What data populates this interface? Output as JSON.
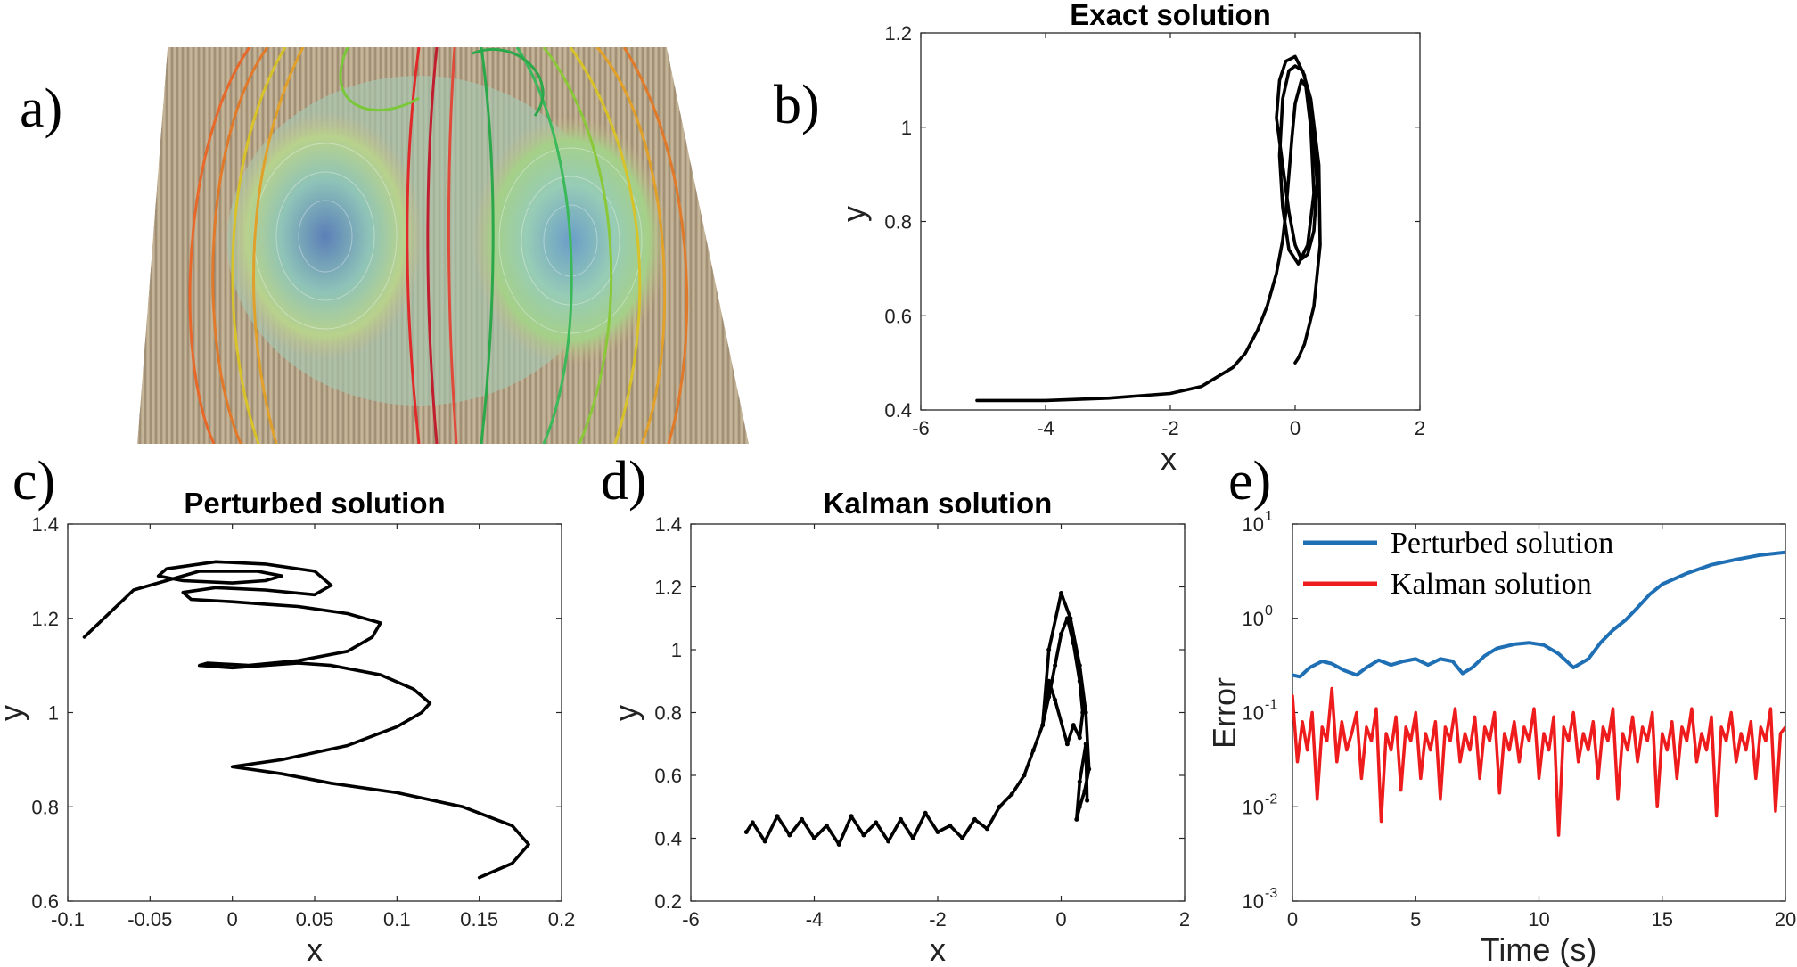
{
  "panel_labels": [
    "a)",
    "b)",
    "c)",
    "d)",
    "e)"
  ],
  "chart_data": [
    {
      "panel": "a)",
      "type": "other"
    },
    {
      "panel": "b)",
      "type": "line",
      "title": "Exact solution",
      "xlabel": "x",
      "ylabel": "y",
      "xlim": [
        -6,
        2
      ],
      "ylim": [
        0.4,
        1.2
      ],
      "xticks": [
        "-6",
        "-4",
        "-2",
        "0",
        "2"
      ],
      "yticks": [
        "0.4",
        "0.6",
        "0.8",
        "1",
        "1.2"
      ],
      "series": [
        {
          "color": "#000000",
          "x": [
            -5.1,
            -4.0,
            -3.0,
            -2.0,
            -1.5,
            -1.0,
            -0.8,
            -0.6,
            -0.45,
            -0.3,
            -0.2,
            -0.15,
            -0.1,
            -0.05,
            0.0,
            0.1,
            0.2,
            0.3,
            0.35,
            0.3,
            0.2,
            0.1,
            0.0,
            -0.1,
            -0.2,
            -0.3,
            -0.25,
            -0.15,
            0.0,
            0.15,
            0.25,
            0.3,
            0.2,
            0.05,
            -0.1,
            -0.2,
            -0.25,
            -0.2,
            -0.1,
            0.0,
            0.12,
            0.25,
            0.38,
            0.4,
            0.3,
            0.15,
            0.05,
            0.0
          ],
          "y": [
            0.42,
            0.42,
            0.425,
            0.435,
            0.45,
            0.49,
            0.52,
            0.57,
            0.62,
            0.69,
            0.76,
            0.82,
            0.9,
            0.98,
            1.05,
            1.1,
            1.08,
            0.98,
            0.88,
            0.78,
            0.73,
            0.72,
            0.75,
            0.82,
            0.92,
            1.02,
            1.1,
            1.14,
            1.15,
            1.11,
            1.0,
            0.86,
            0.75,
            0.71,
            0.74,
            0.83,
            0.94,
            1.06,
            1.12,
            1.13,
            1.12,
            1.06,
            0.92,
            0.75,
            0.62,
            0.54,
            0.51,
            0.5
          ]
        }
      ]
    },
    {
      "panel": "c)",
      "type": "line",
      "title": "Perturbed solution",
      "xlabel": "x",
      "ylabel": "y",
      "xlim": [
        -0.1,
        0.2
      ],
      "ylim": [
        0.6,
        1.4
      ],
      "xticks": [
        "-0.1",
        "-0.05",
        "0",
        "0.05",
        "0.1",
        "0.15",
        "0.2"
      ],
      "yticks": [
        "0.6",
        "0.8",
        "1",
        "1.2",
        "1.4"
      ],
      "series": [
        {
          "color": "#000000",
          "x": [
            0.15,
            0.17,
            0.18,
            0.17,
            0.14,
            0.1,
            0.06,
            0.03,
            0.01,
            0.0,
            0.03,
            0.07,
            0.1,
            0.115,
            0.12,
            0.11,
            0.09,
            0.06,
            0.04,
            0.02,
            0.0,
            -0.02,
            -0.015,
            0.01,
            0.04,
            0.07,
            0.085,
            0.09,
            0.07,
            0.04,
            0.02,
            0.0,
            -0.025,
            -0.03,
            -0.01,
            0.02,
            0.05,
            0.06,
            0.05,
            0.02,
            -0.01,
            -0.04,
            -0.045,
            -0.03,
            0.0,
            0.02,
            0.03,
            0.015,
            -0.02,
            -0.06,
            -0.09
          ],
          "y": [
            0.65,
            0.68,
            0.72,
            0.76,
            0.8,
            0.83,
            0.85,
            0.87,
            0.88,
            0.885,
            0.9,
            0.93,
            0.97,
            1.0,
            1.02,
            1.05,
            1.08,
            1.1,
            1.105,
            1.1,
            1.095,
            1.1,
            1.105,
            1.1,
            1.11,
            1.13,
            1.16,
            1.19,
            1.21,
            1.225,
            1.23,
            1.235,
            1.24,
            1.255,
            1.265,
            1.26,
            1.25,
            1.27,
            1.3,
            1.315,
            1.32,
            1.305,
            1.29,
            1.28,
            1.275,
            1.28,
            1.29,
            1.3,
            1.3,
            1.26,
            1.16
          ]
        }
      ]
    },
    {
      "panel": "d)",
      "type": "line",
      "title": "Kalman solution",
      "xlabel": "x",
      "ylabel": "y",
      "xlim": [
        -6,
        2
      ],
      "ylim": [
        0.2,
        1.4
      ],
      "xticks": [
        "-6",
        "-4",
        "-2",
        "0",
        "2"
      ],
      "yticks": [
        "0.2",
        "0.4",
        "0.6",
        "0.8",
        "1",
        "1.2",
        "1.4"
      ],
      "series": [
        {
          "color": "#000000",
          "x": [
            -5.1,
            -5.0,
            -4.8,
            -4.6,
            -4.4,
            -4.2,
            -4.0,
            -3.8,
            -3.6,
            -3.4,
            -3.2,
            -3.0,
            -2.8,
            -2.6,
            -2.4,
            -2.2,
            -2.0,
            -1.8,
            -1.6,
            -1.4,
            -1.2,
            -1.0,
            -0.8,
            -0.6,
            -0.45,
            -0.3,
            -0.2,
            -0.1,
            0.0,
            0.1,
            0.2,
            0.3,
            0.35,
            0.3,
            0.2,
            0.1,
            -0.1,
            -0.2,
            -0.3,
            -0.2,
            0.0,
            0.15,
            0.3,
            0.4,
            0.45,
            0.38,
            0.3,
            0.25,
            0.3,
            0.4,
            0.42
          ],
          "y": [
            0.42,
            0.45,
            0.39,
            0.47,
            0.41,
            0.46,
            0.4,
            0.44,
            0.38,
            0.47,
            0.41,
            0.45,
            0.39,
            0.46,
            0.4,
            0.48,
            0.42,
            0.44,
            0.4,
            0.46,
            0.43,
            0.5,
            0.54,
            0.6,
            0.68,
            0.76,
            0.85,
            0.95,
            1.05,
            1.1,
            1.02,
            0.9,
            0.8,
            0.72,
            0.76,
            0.7,
            0.84,
            0.9,
            0.76,
            1.0,
            1.18,
            1.1,
            0.95,
            0.8,
            0.62,
            0.55,
            0.5,
            0.46,
            0.58,
            0.7,
            0.52
          ]
        }
      ]
    },
    {
      "panel": "e)",
      "type": "line",
      "xlabel": "Time (s)",
      "ylabel": "Error",
      "xlim": [
        0,
        20
      ],
      "ylim": [
        0.001,
        10
      ],
      "yscale": "log",
      "xticks": [
        "0",
        "5",
        "10",
        "15",
        "20"
      ],
      "yticks": [
        "10",
        "10",
        "10",
        "10",
        "10"
      ],
      "ytick_exponents": [
        "-3",
        "-2",
        "-1",
        "0",
        "1"
      ],
      "legend_position": "top-left",
      "series": [
        {
          "name": "Perturbed solution",
          "color": "#1f6fb5",
          "x": [
            0.0,
            0.3,
            0.7,
            1.2,
            1.6,
            2.1,
            2.6,
            3.0,
            3.5,
            4.0,
            4.5,
            5.0,
            5.5,
            6.0,
            6.5,
            6.9,
            7.3,
            7.8,
            8.3,
            9.0,
            9.6,
            10.2,
            10.8,
            11.4,
            12.0,
            12.5,
            13.0,
            13.5,
            14.0,
            14.5,
            15.0,
            16.0,
            17.0,
            18.0,
            19.0,
            20.0
          ],
          "y": [
            0.25,
            0.24,
            0.3,
            0.35,
            0.33,
            0.28,
            0.25,
            0.3,
            0.36,
            0.32,
            0.35,
            0.37,
            0.32,
            0.37,
            0.35,
            0.26,
            0.3,
            0.4,
            0.48,
            0.53,
            0.55,
            0.52,
            0.42,
            0.3,
            0.37,
            0.55,
            0.75,
            0.95,
            1.3,
            1.8,
            2.3,
            3.0,
            3.7,
            4.2,
            4.7,
            5.0
          ]
        },
        {
          "name": "Kalman solution",
          "color": "#ee1c1c",
          "x": [
            0.0,
            0.2,
            0.4,
            0.6,
            0.8,
            1.0,
            1.2,
            1.4,
            1.6,
            1.8,
            2.0,
            2.2,
            2.4,
            2.6,
            2.8,
            3.0,
            3.2,
            3.4,
            3.6,
            3.8,
            4.0,
            4.2,
            4.4,
            4.6,
            4.8,
            5.0,
            5.2,
            5.4,
            5.6,
            5.8,
            6.0,
            6.2,
            6.4,
            6.6,
            6.8,
            7.0,
            7.2,
            7.4,
            7.6,
            7.8,
            8.0,
            8.2,
            8.4,
            8.6,
            8.8,
            9.0,
            9.2,
            9.4,
            9.6,
            9.8,
            10.0,
            10.2,
            10.4,
            10.6,
            10.8,
            11.0,
            11.2,
            11.4,
            11.6,
            11.8,
            12.0,
            12.2,
            12.4,
            12.6,
            12.8,
            13.0,
            13.2,
            13.4,
            13.6,
            13.8,
            14.0,
            14.2,
            14.4,
            14.6,
            14.8,
            15.0,
            15.2,
            15.4,
            15.6,
            15.8,
            16.0,
            16.2,
            16.4,
            16.6,
            16.8,
            17.0,
            17.2,
            17.4,
            17.6,
            17.8,
            18.0,
            18.2,
            18.4,
            18.6,
            18.8,
            19.0,
            19.2,
            19.4,
            19.6,
            19.8,
            20.0
          ],
          "y": [
            0.15,
            0.03,
            0.08,
            0.04,
            0.1,
            0.012,
            0.07,
            0.05,
            0.18,
            0.03,
            0.08,
            0.04,
            0.06,
            0.1,
            0.02,
            0.07,
            0.05,
            0.11,
            0.007,
            0.06,
            0.04,
            0.09,
            0.015,
            0.07,
            0.05,
            0.1,
            0.02,
            0.06,
            0.04,
            0.08,
            0.012,
            0.07,
            0.05,
            0.11,
            0.03,
            0.06,
            0.04,
            0.09,
            0.02,
            0.07,
            0.05,
            0.1,
            0.014,
            0.06,
            0.04,
            0.08,
            0.03,
            0.07,
            0.05,
            0.11,
            0.02,
            0.06,
            0.04,
            0.09,
            0.005,
            0.07,
            0.05,
            0.1,
            0.03,
            0.06,
            0.04,
            0.08,
            0.02,
            0.07,
            0.05,
            0.11,
            0.012,
            0.06,
            0.04,
            0.09,
            0.03,
            0.07,
            0.05,
            0.1,
            0.01,
            0.06,
            0.04,
            0.08,
            0.02,
            0.07,
            0.05,
            0.11,
            0.03,
            0.06,
            0.04,
            0.09,
            0.008,
            0.07,
            0.05,
            0.1,
            0.03,
            0.06,
            0.04,
            0.08,
            0.02,
            0.07,
            0.05,
            0.11,
            0.009,
            0.06,
            0.07
          ]
        }
      ]
    }
  ]
}
